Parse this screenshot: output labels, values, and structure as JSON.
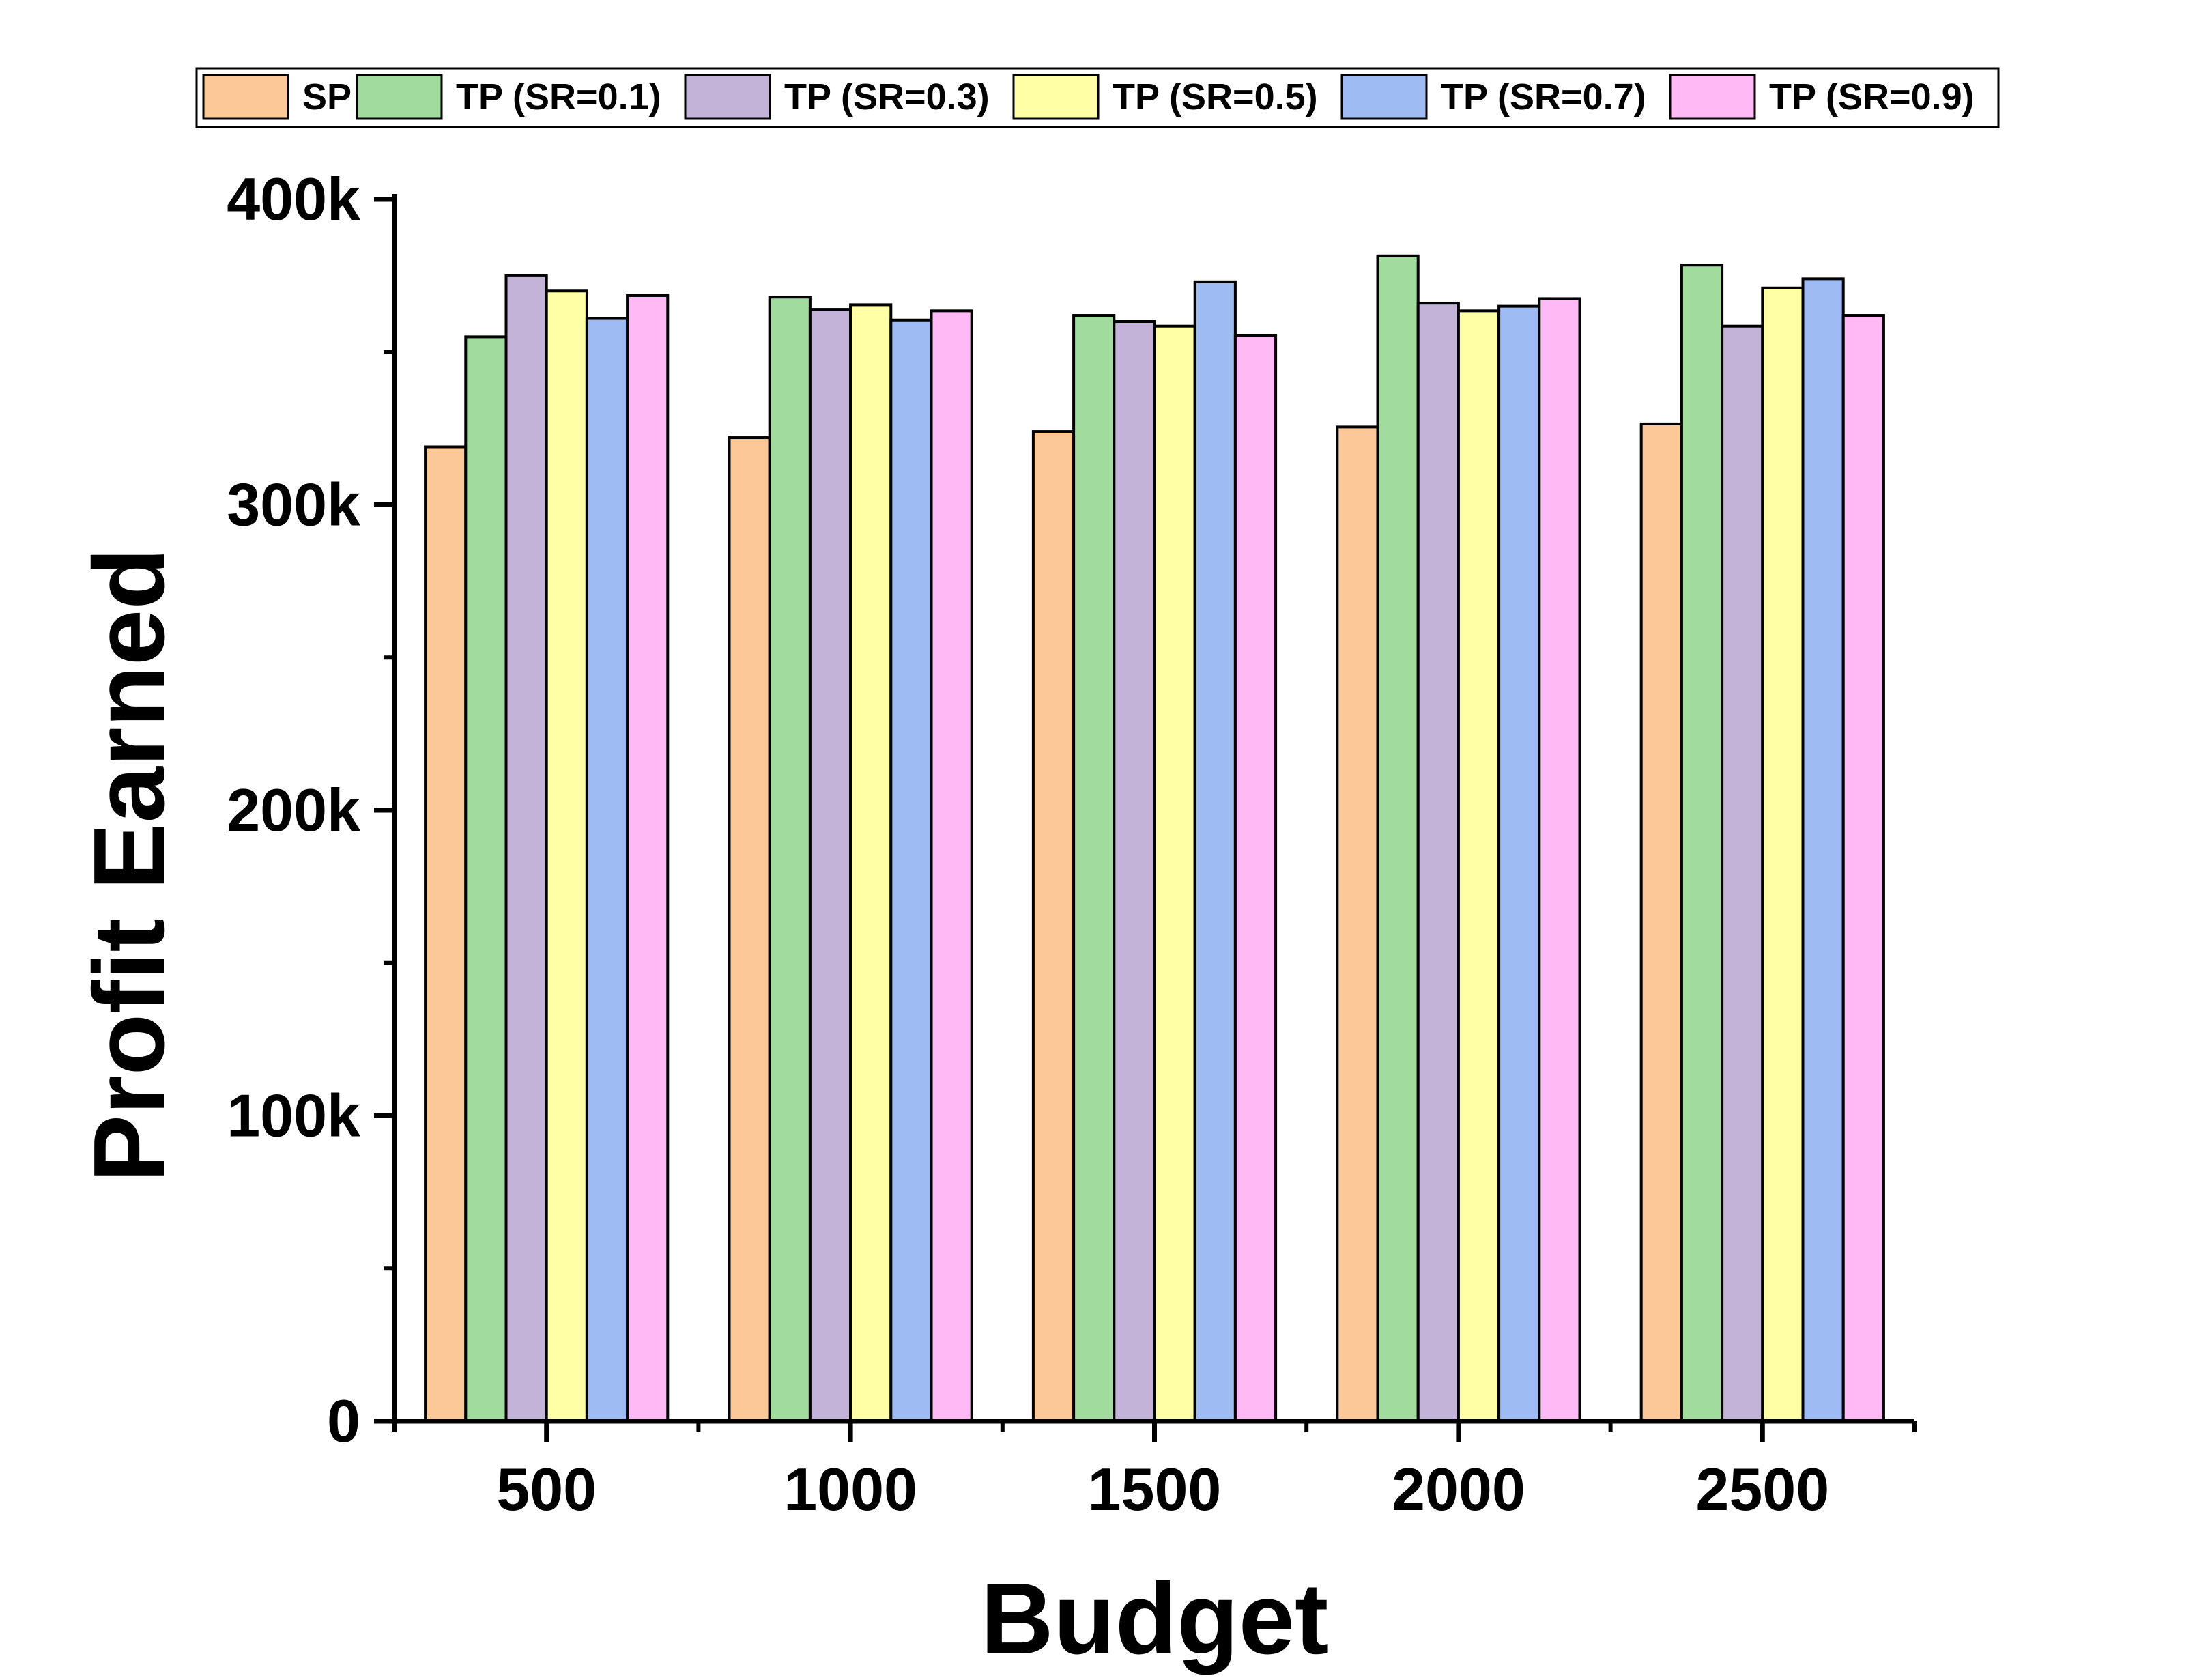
{
  "chart_data": {
    "type": "bar",
    "title": "",
    "xlabel": "Budget",
    "ylabel": "Profit Earned",
    "categories": [
      "500",
      "1000",
      "1500",
      "2000",
      "2500"
    ],
    "ylim": [
      0,
      400000
    ],
    "yticks": [
      {
        "value": 0,
        "label": "0"
      },
      {
        "value": 100000,
        "label": "100k"
      },
      {
        "value": 200000,
        "label": "200k"
      },
      {
        "value": 300000,
        "label": "300k"
      },
      {
        "value": 400000,
        "label": "400k"
      }
    ],
    "y_minor_tick_step": 50000,
    "grid": false,
    "legend_position": "top",
    "series": [
      {
        "name": "SP",
        "color": "#FDC897",
        "values": [
          319000,
          322000,
          324000,
          325500,
          326500
        ]
      },
      {
        "name": "TP (SR=0.1)",
        "color": "#A1DB9D",
        "values": [
          355000,
          368000,
          362000,
          381500,
          378500
        ]
      },
      {
        "name": "TP (SR=0.3)",
        "color": "#C4B3D8",
        "values": [
          375000,
          364000,
          360000,
          366000,
          358500
        ]
      },
      {
        "name": "TP (SR=0.5)",
        "color": "#FFFFA6",
        "values": [
          370000,
          365500,
          358500,
          363500,
          371000
        ]
      },
      {
        "name": "TP (SR=0.7)",
        "color": "#9EBBF3",
        "values": [
          361000,
          360500,
          373000,
          365000,
          374000
        ]
      },
      {
        "name": "TP (SR=0.9)",
        "color": "#FFBAF5",
        "values": [
          368500,
          363500,
          355500,
          367500,
          362000
        ]
      }
    ]
  }
}
